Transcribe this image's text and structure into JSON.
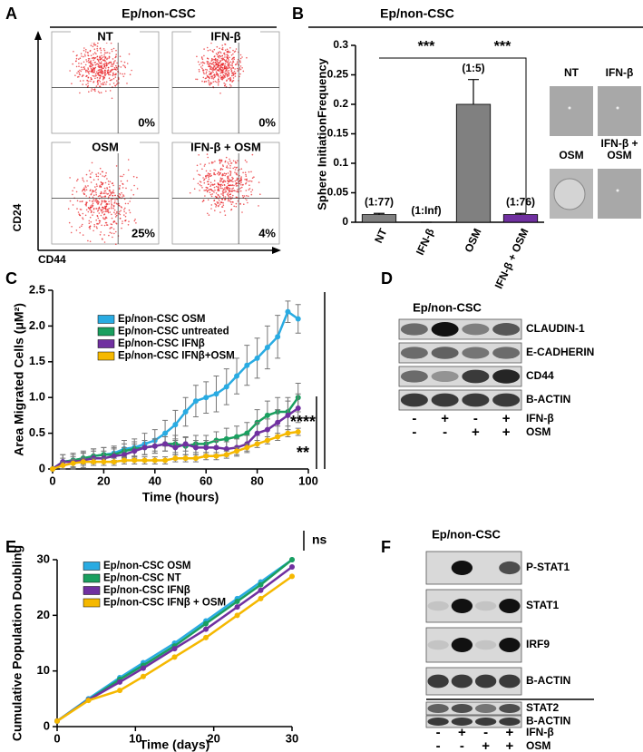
{
  "panel_labels": [
    "A",
    "B",
    "C",
    "D",
    "E",
    "F"
  ],
  "flow_cytometry": {
    "title": "Ep/non-CSC",
    "y_label": "CD24",
    "x_label": "CD44",
    "plots": [
      {
        "label": "NT",
        "percent": "0%"
      },
      {
        "label": "IFN-β",
        "percent": "0%"
      },
      {
        "label": "OSM",
        "percent": "25%"
      },
      {
        "label": "IFN-β + OSM",
        "percent": "4%"
      }
    ]
  },
  "sphere_images": [
    [
      "NT"
    ],
    [
      "IFN-β"
    ],
    [
      "OSM"
    ],
    [
      "IFN-β +",
      "OSM"
    ]
  ],
  "chart_data": [
    {
      "type": "bar",
      "title": "Ep/non-CSC",
      "y_label": "Sphere InitiationFrequency",
      "categories": [
        "NT",
        "IFN-β",
        "OSM",
        "IFN-β + OSM"
      ],
      "values": [
        0.013,
        0,
        0.2,
        0.013
      ],
      "errors": [
        0.002,
        0,
        0.042,
        0.002
      ],
      "value_labels": [
        "(1:77)",
        "(1:Inf)",
        "(1:5)",
        "(1:76)"
      ],
      "colors": [
        "#808080",
        "#808080",
        "#808080",
        "#7030a0"
      ],
      "ylim": [
        0,
        0.3
      ],
      "yticks": [
        0,
        0.05,
        0.1,
        0.15,
        0.2,
        0.25,
        0.3
      ],
      "annotations": [
        "***",
        "***"
      ]
    },
    {
      "type": "line",
      "x_label": "Time (hours)",
      "y_label": "Area Migrated Cells (μM²)",
      "x": [
        0,
        4,
        8,
        12,
        16,
        20,
        24,
        28,
        32,
        36,
        40,
        44,
        48,
        52,
        56,
        60,
        64,
        68,
        72,
        76,
        80,
        84,
        88,
        92,
        96
      ],
      "series": [
        {
          "name": "Ep/non-CSC OSM",
          "color": "#29abe2",
          "values": [
            0,
            0.1,
            0.12,
            0.15,
            0.18,
            0.2,
            0.22,
            0.28,
            0.3,
            0.35,
            0.4,
            0.5,
            0.62,
            0.8,
            0.95,
            1.0,
            1.05,
            1.15,
            1.3,
            1.45,
            1.55,
            1.7,
            1.85,
            2.2,
            2.1
          ],
          "errors": [
            0,
            0.05,
            0.05,
            0.08,
            0.1,
            0.1,
            0.1,
            0.12,
            0.12,
            0.15,
            0.15,
            0.18,
            0.2,
            0.2,
            0.22,
            0.22,
            0.25,
            0.25,
            0.25,
            0.28,
            0.28,
            0.3,
            0.3,
            0.15,
            0.2
          ]
        },
        {
          "name": "Ep/non-CSC untreated",
          "color": "#1a9f5f",
          "values": [
            0,
            0.1,
            0.12,
            0.15,
            0.18,
            0.2,
            0.2,
            0.25,
            0.28,
            0.3,
            0.32,
            0.35,
            0.35,
            0.32,
            0.35,
            0.35,
            0.4,
            0.42,
            0.45,
            0.5,
            0.65,
            0.75,
            0.8,
            0.8,
            1.0
          ],
          "errors": [
            0,
            0.1,
            0.1,
            0.1,
            0.1,
            0.1,
            0.1,
            0.1,
            0.1,
            0.1,
            0.1,
            0.1,
            0.12,
            0.12,
            0.12,
            0.12,
            0.12,
            0.15,
            0.15,
            0.15,
            0.18,
            0.2,
            0.2,
            0.2,
            0.2
          ]
        },
        {
          "name": "Ep/non-CSC IFNβ",
          "color": "#7030a0",
          "values": [
            0,
            0.1,
            0.1,
            0.12,
            0.15,
            0.15,
            0.18,
            0.2,
            0.25,
            0.3,
            0.32,
            0.35,
            0.3,
            0.35,
            0.3,
            0.3,
            0.3,
            0.28,
            0.3,
            0.35,
            0.5,
            0.55,
            0.65,
            0.75,
            0.85
          ],
          "errors": [
            0,
            0.1,
            0.1,
            0.1,
            0.1,
            0.1,
            0.1,
            0.1,
            0.1,
            0.1,
            0.1,
            0.1,
            0.1,
            0.1,
            0.1,
            0.1,
            0.1,
            0.1,
            0.12,
            0.12,
            0.15,
            0.15,
            0.18,
            0.2,
            0.2
          ]
        },
        {
          "name": "Ep/non-CSC IFNβ+OSM",
          "color": "#f5b800",
          "values": [
            0,
            0.05,
            0.08,
            0.1,
            0.1,
            0.1,
            0.1,
            0.12,
            0.12,
            0.12,
            0.12,
            0.12,
            0.15,
            0.15,
            0.15,
            0.18,
            0.18,
            0.2,
            0.25,
            0.3,
            0.35,
            0.4,
            0.45,
            0.5,
            0.52
          ],
          "errors": [
            0,
            0.05,
            0.05,
            0.05,
            0.05,
            0.05,
            0.05,
            0.05,
            0.05,
            0.05,
            0.05,
            0.05,
            0.05,
            0.05,
            0.05,
            0.05,
            0.05,
            0.05,
            0.05,
            0.05,
            0.05,
            0.05,
            0.05,
            0.05,
            0.05
          ]
        }
      ],
      "xlim": [
        0,
        100
      ],
      "xticks": [
        0,
        20,
        40,
        60,
        80,
        100
      ],
      "ylim": [
        0,
        2.5
      ],
      "yticks": [
        0,
        0.5,
        {
          "value": 1,
          "label": "1.0"
        },
        1.5,
        {
          "value": 2,
          "label": "2.0"
        },
        2.5
      ],
      "legend": "upper left",
      "annotations": [
        "****",
        "**"
      ]
    },
    {
      "type": "line",
      "x_label": "Time (days)",
      "y_label": "Cumulative Population Doubling",
      "x": [
        0,
        4,
        8,
        11,
        15,
        19,
        23,
        26,
        30
      ],
      "series": [
        {
          "name": "Ep/non-CSC OSM",
          "color": "#29abe2",
          "values": [
            1,
            5,
            8.8,
            11.5,
            15,
            19,
            23,
            26,
            30
          ]
        },
        {
          "name": "Ep/non-CSC NT",
          "color": "#1a9f5f",
          "values": [
            1,
            4.8,
            8.5,
            11,
            14.5,
            18.5,
            22.5,
            25.5,
            30
          ]
        },
        {
          "name": "Ep/non-CSC IFNβ",
          "color": "#7030a0",
          "values": [
            1,
            4.8,
            8,
            10.5,
            14,
            17.5,
            21.5,
            24.5,
            28.7
          ]
        },
        {
          "name": "Ep/non-CSC IFNβ + OSM",
          "color": "#f5b800",
          "values": [
            1,
            4.7,
            6.5,
            9,
            12.5,
            16,
            20,
            23,
            27
          ]
        }
      ],
      "xlim": [
        0,
        30
      ],
      "xticks": [
        0,
        10,
        20,
        30
      ],
      "ylim": [
        0,
        30
      ],
      "yticks": [
        0,
        10,
        20,
        30
      ],
      "legend": "upper left",
      "annotations": [
        "ns"
      ]
    }
  ],
  "western_blot_D": {
    "title": "Ep/non-CSC",
    "bands": [
      "CLAUDIN-1",
      "E-CADHERIN",
      "CD44",
      "B-ACTIN"
    ],
    "treatments": [
      {
        "name": "IFN-β",
        "signs": [
          "-",
          "+",
          "-",
          "+"
        ]
      },
      {
        "name": "OSM",
        "signs": [
          "-",
          "-",
          "+",
          "+"
        ]
      }
    ]
  },
  "western_blot_F": {
    "title": "Ep/non-CSC",
    "bands": [
      "P-STAT1",
      "STAT1",
      "IRF9",
      "B-ACTIN",
      "STAT2",
      "B-ACTIN"
    ],
    "treatments": [
      {
        "name": "IFN-β",
        "signs": [
          "-",
          "+",
          "-",
          "+"
        ]
      },
      {
        "name": "OSM",
        "signs": [
          "-",
          "-",
          "+",
          "+"
        ]
      }
    ]
  }
}
